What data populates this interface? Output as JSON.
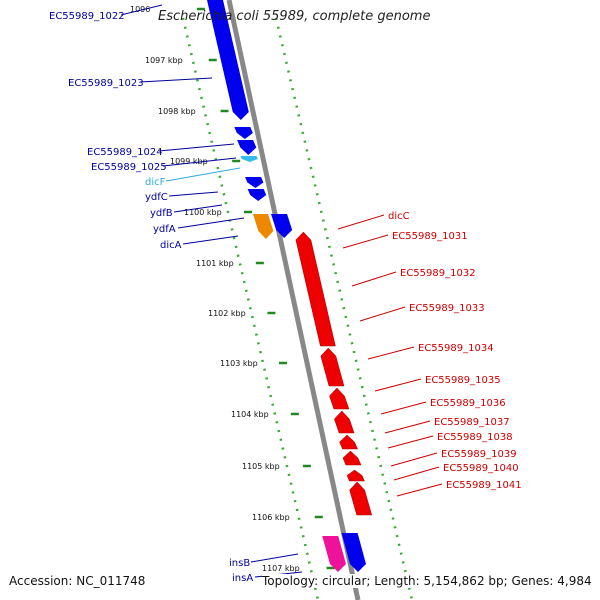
{
  "title": "Escherichia coli 55989, complete genome",
  "footer": {
    "accession": "Accession: NC_011748",
    "summary": "Topology: circular; Length: 5,154,862 bp; Genes: 4,984"
  },
  "scale_ticks": [
    {
      "label": "1096",
      "kbp": 1096
    },
    {
      "label": "1097 kbp",
      "kbp": 1097
    },
    {
      "label": "1098 kbp",
      "kbp": 1098
    },
    {
      "label": "1099 kbp",
      "kbp": 1099
    },
    {
      "label": "1100 kbp",
      "kbp": 1100
    },
    {
      "label": "1101 kbp",
      "kbp": 1101
    },
    {
      "label": "1102 kbp",
      "kbp": 1102
    },
    {
      "label": "1103 kbp",
      "kbp": 1103
    },
    {
      "label": "1104 kbp",
      "kbp": 1104
    },
    {
      "label": "1105 kbp",
      "kbp": 1105
    },
    {
      "label": "1106 kbp",
      "kbp": 1106
    },
    {
      "label": "1107 kbp",
      "kbp": 1107
    }
  ],
  "colors": {
    "forward_cds": "#0000ee",
    "reverse_cds": "#ee0000",
    "rna": "#33bbee",
    "orange_gene": "#ee8800",
    "pink_gene": "#ee1199",
    "backbone": "#888888",
    "tick": "#228822",
    "reverse_label": "#cc0000",
    "forward_label": "#000099"
  },
  "forward_labels": [
    {
      "text": "EC55989_1022",
      "color": "#000099"
    },
    {
      "text": "EC55989_1023",
      "color": "#000099"
    },
    {
      "text": "EC55989_1024",
      "color": "#000099"
    },
    {
      "text": "EC55989_1025",
      "color": "#000099"
    },
    {
      "text": "dicF",
      "color": "#33aadd"
    },
    {
      "text": "ydfC",
      "color": "#000099"
    },
    {
      "text": "ydfB",
      "color": "#000099"
    },
    {
      "text": "ydfA",
      "color": "#000099"
    },
    {
      "text": "dicA",
      "color": "#000099"
    },
    {
      "text": "insB",
      "color": "#000099"
    },
    {
      "text": "insA",
      "color": "#000099"
    }
  ],
  "reverse_labels": [
    {
      "text": "dicC"
    },
    {
      "text": "EC55989_1031"
    },
    {
      "text": "EC55989_1032"
    },
    {
      "text": "EC55989_1033"
    },
    {
      "text": "EC55989_1034"
    },
    {
      "text": "EC55989_1035"
    },
    {
      "text": "EC55989_1036"
    },
    {
      "text": "EC55989_1037"
    },
    {
      "text": "EC55989_1038"
    },
    {
      "text": "EC55989_1039"
    },
    {
      "text": "EC55989_1040"
    },
    {
      "text": "EC55989_1041"
    }
  ]
}
